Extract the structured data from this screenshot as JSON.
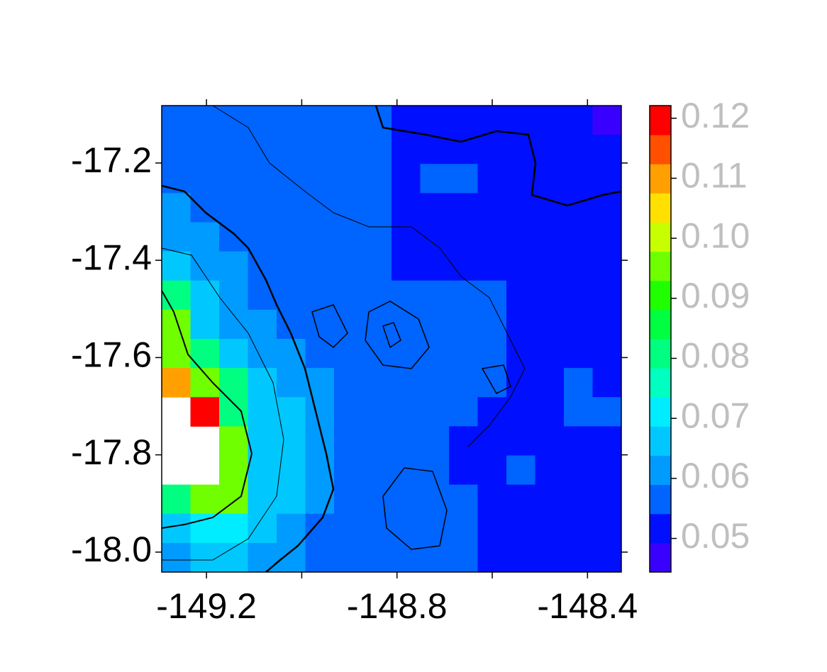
{
  "chart_data": {
    "type": "heatmap",
    "xlim": [
      -149.294,
      -148.329
    ],
    "ylim": [
      -18.041,
      -17.082
    ],
    "xticks": [
      -149.2,
      -148.8,
      -148.4
    ],
    "xminorticks": [
      -149.0,
      -148.6
    ],
    "yticks": [
      -17.2,
      -17.4,
      -17.6,
      -17.8,
      {
        "value": -18.0,
        "label": "-18.0"
      }
    ],
    "z": [
      [
        0.058,
        0.058,
        0.058,
        0.058,
        0.058,
        0.058,
        0.058,
        0.058,
        0.053,
        0.053,
        0.053,
        0.053,
        0.053,
        0.053,
        0.053,
        0.047
      ],
      [
        0.058,
        0.058,
        0.058,
        0.058,
        0.058,
        0.058,
        0.058,
        0.058,
        0.053,
        0.053,
        0.053,
        0.053,
        0.053,
        0.053,
        0.053,
        0.053
      ],
      [
        0.058,
        0.058,
        0.058,
        0.058,
        0.058,
        0.058,
        0.058,
        0.058,
        0.053,
        0.058,
        0.058,
        0.053,
        0.053,
        0.053,
        0.053,
        0.053
      ],
      [
        0.062,
        0.058,
        0.058,
        0.058,
        0.058,
        0.058,
        0.058,
        0.058,
        0.053,
        0.053,
        0.053,
        0.053,
        0.053,
        0.053,
        0.053,
        0.053
      ],
      [
        0.062,
        0.062,
        0.058,
        0.058,
        0.058,
        0.058,
        0.058,
        0.058,
        0.053,
        0.053,
        0.053,
        0.053,
        0.053,
        0.053,
        0.053,
        0.053
      ],
      [
        0.067,
        0.062,
        0.062,
        0.058,
        0.058,
        0.058,
        0.058,
        0.058,
        0.053,
        0.053,
        0.053,
        0.053,
        0.053,
        0.053,
        0.053,
        0.053
      ],
      [
        0.08,
        0.067,
        0.062,
        0.058,
        0.058,
        0.058,
        0.058,
        0.058,
        0.058,
        0.058,
        0.058,
        0.058,
        0.053,
        0.053,
        0.053,
        0.053
      ],
      [
        0.095,
        0.067,
        0.062,
        0.062,
        0.058,
        0.058,
        0.058,
        0.058,
        0.058,
        0.058,
        0.058,
        0.058,
        0.053,
        0.053,
        0.053,
        0.053
      ],
      [
        0.095,
        0.08,
        0.067,
        0.062,
        0.062,
        0.058,
        0.058,
        0.058,
        0.058,
        0.058,
        0.058,
        0.058,
        0.053,
        0.053,
        0.053,
        0.053
      ],
      [
        0.11,
        0.095,
        0.08,
        0.067,
        0.062,
        0.062,
        0.058,
        0.058,
        0.058,
        0.058,
        0.058,
        0.058,
        0.053,
        0.053,
        0.058,
        0.053
      ],
      [
        null,
        0.12,
        0.08,
        0.067,
        0.067,
        0.062,
        0.058,
        0.058,
        0.058,
        0.058,
        0.058,
        0.053,
        0.053,
        0.053,
        0.058,
        0.058
      ],
      [
        null,
        null,
        0.095,
        0.067,
        0.067,
        0.062,
        0.058,
        0.058,
        0.058,
        0.058,
        0.053,
        0.053,
        0.053,
        0.053,
        0.053,
        0.053
      ],
      [
        null,
        null,
        0.095,
        0.067,
        0.067,
        0.062,
        0.058,
        0.058,
        0.058,
        0.058,
        0.053,
        0.053,
        0.058,
        0.053,
        0.053,
        0.053
      ],
      [
        0.08,
        0.095,
        0.095,
        0.067,
        0.067,
        0.062,
        0.058,
        0.058,
        0.058,
        0.058,
        0.058,
        0.053,
        0.053,
        0.053,
        0.053,
        0.053
      ],
      [
        0.067,
        0.071,
        0.071,
        0.067,
        0.062,
        0.058,
        0.058,
        0.058,
        0.058,
        0.058,
        0.058,
        0.053,
        0.053,
        0.053,
        0.053,
        0.053
      ],
      [
        0.062,
        0.067,
        0.067,
        0.062,
        0.062,
        0.058,
        0.058,
        0.058,
        0.058,
        0.058,
        0.058,
        0.053,
        0.053,
        0.053,
        0.053,
        0.053
      ]
    ],
    "colorbar": {
      "lim": [
        0.0444,
        0.1221
      ],
      "colors": [
        "#3a00ff",
        "#0010ff",
        "#0064ff",
        "#009bff",
        "#00c8ff",
        "#00ecff",
        "#00ffc0",
        "#00ff80",
        "#00ff40",
        "#20ff00",
        "#70ff00",
        "#c8ff00",
        "#ffe000",
        "#ffa000",
        "#ff5000",
        "#ff0000"
      ],
      "ticks": [
        0.12,
        0.11,
        {
          "value": 0.1,
          "label": "0.10"
        },
        0.09,
        0.08,
        0.07,
        0.06,
        0.05
      ]
    }
  }
}
